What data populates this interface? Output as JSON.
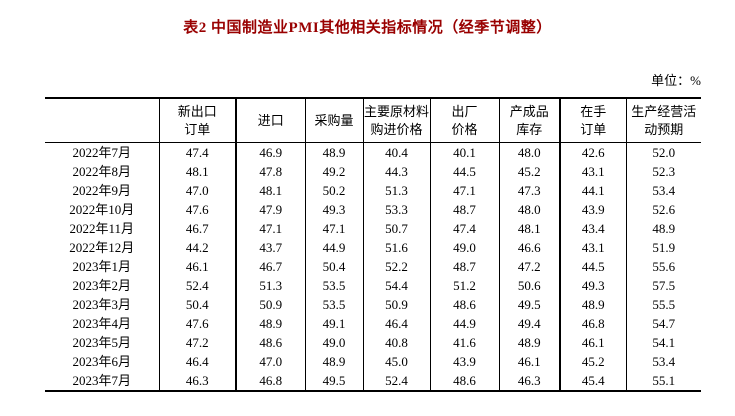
{
  "title": "表2 中国制造业PMI其他相关指标情况（经季节调整）",
  "unit_label": "单位：%",
  "colors": {
    "title_red": "#990000",
    "text": "#000000",
    "border": "#000000",
    "background": "#ffffff"
  },
  "table": {
    "corner_label": "",
    "headers": [
      "新出口\n订单",
      "进口",
      "采购量",
      "主要原材料\n购进价格",
      "出厂\n价格",
      "产成品\n库存",
      "在手\n订单",
      "生产经营活\n动预期"
    ],
    "rows": [
      {
        "month": "2022年7月",
        "values": [
          "47.4",
          "46.9",
          "48.9",
          "40.4",
          "40.1",
          "48.0",
          "42.6",
          "52.0"
        ]
      },
      {
        "month": "2022年8月",
        "values": [
          "48.1",
          "47.8",
          "49.2",
          "44.3",
          "44.5",
          "45.2",
          "43.1",
          "52.3"
        ]
      },
      {
        "month": "2022年9月",
        "values": [
          "47.0",
          "48.1",
          "50.2",
          "51.3",
          "47.1",
          "47.3",
          "44.1",
          "53.4"
        ]
      },
      {
        "month": "2022年10月",
        "values": [
          "47.6",
          "47.9",
          "49.3",
          "53.3",
          "48.7",
          "48.0",
          "43.9",
          "52.6"
        ]
      },
      {
        "month": "2022年11月",
        "values": [
          "46.7",
          "47.1",
          "47.1",
          "50.7",
          "47.4",
          "48.1",
          "43.4",
          "48.9"
        ]
      },
      {
        "month": "2022年12月",
        "values": [
          "44.2",
          "43.7",
          "44.9",
          "51.6",
          "49.0",
          "46.6",
          "43.1",
          "51.9"
        ]
      },
      {
        "month": "2023年1月",
        "values": [
          "46.1",
          "46.7",
          "50.4",
          "52.2",
          "48.7",
          "47.2",
          "44.5",
          "55.6"
        ]
      },
      {
        "month": "2023年2月",
        "values": [
          "52.4",
          "51.3",
          "53.5",
          "54.4",
          "51.2",
          "50.6",
          "49.3",
          "57.5"
        ]
      },
      {
        "month": "2023年3月",
        "values": [
          "50.4",
          "50.9",
          "53.5",
          "50.9",
          "48.6",
          "49.5",
          "48.9",
          "55.5"
        ]
      },
      {
        "month": "2023年4月",
        "values": [
          "47.6",
          "48.9",
          "49.1",
          "46.4",
          "44.9",
          "49.4",
          "46.8",
          "54.7"
        ]
      },
      {
        "month": "2023年5月",
        "values": [
          "47.2",
          "48.6",
          "49.0",
          "40.8",
          "41.6",
          "48.9",
          "46.1",
          "54.1"
        ]
      },
      {
        "month": "2023年6月",
        "values": [
          "46.4",
          "47.0",
          "48.9",
          "45.0",
          "43.9",
          "46.1",
          "45.2",
          "53.4"
        ]
      },
      {
        "month": "2023年7月",
        "values": [
          "46.3",
          "46.8",
          "49.5",
          "52.4",
          "48.6",
          "46.3",
          "45.4",
          "55.1"
        ]
      }
    ]
  }
}
